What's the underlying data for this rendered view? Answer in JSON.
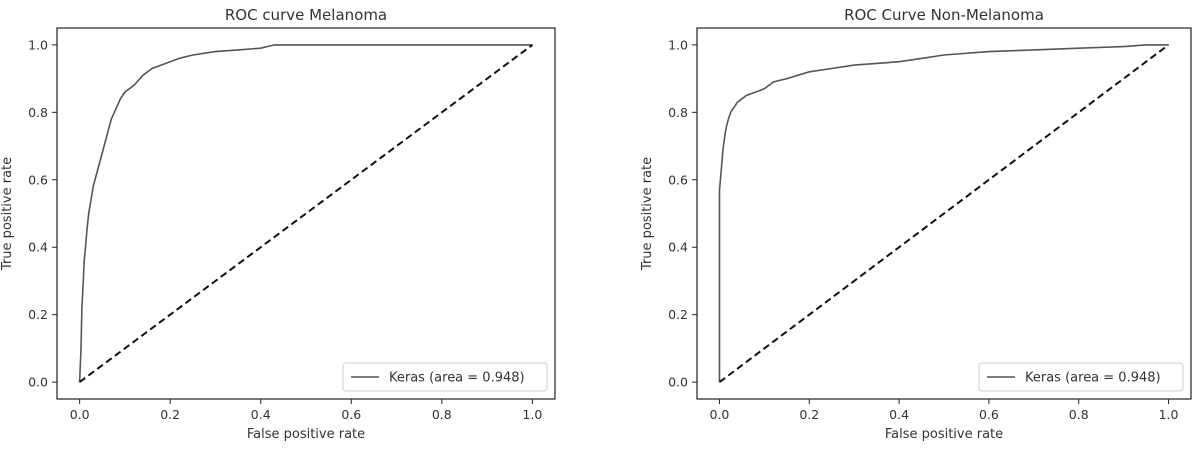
{
  "chart_data": [
    {
      "type": "line",
      "title": "ROC curve Melanoma",
      "xlabel": "False positive rate",
      "ylabel": "True positive rate",
      "xlim": [
        -0.05,
        1.05
      ],
      "ylim": [
        -0.05,
        1.05
      ],
      "xticks": [
        "0.0",
        "0.2",
        "0.4",
        "0.6",
        "0.8",
        "1.0"
      ],
      "yticks": [
        "0.0",
        "0.2",
        "0.4",
        "0.6",
        "0.8",
        "1.0"
      ],
      "xtick_values": [
        0,
        0.2,
        0.4,
        0.6,
        0.8,
        1.0
      ],
      "ytick_values": [
        0,
        0.2,
        0.4,
        0.6,
        0.8,
        1.0
      ],
      "legend_position": "lower right",
      "grid": false,
      "series": [
        {
          "name": "Keras (area = 0.948)",
          "color": "#555555",
          "style": "solid",
          "x": [
            0,
            0.003,
            0.005,
            0.008,
            0.01,
            0.013,
            0.016,
            0.02,
            0.025,
            0.03,
            0.04,
            0.05,
            0.06,
            0.07,
            0.08,
            0.09,
            0.1,
            0.12,
            0.14,
            0.16,
            0.18,
            0.2,
            0.22,
            0.25,
            0.3,
            0.35,
            0.4,
            0.43,
            0.6,
            0.8,
            1.0
          ],
          "y": [
            0,
            0.1,
            0.22,
            0.3,
            0.36,
            0.4,
            0.45,
            0.5,
            0.54,
            0.58,
            0.63,
            0.68,
            0.73,
            0.78,
            0.81,
            0.84,
            0.86,
            0.88,
            0.91,
            0.93,
            0.94,
            0.95,
            0.96,
            0.97,
            0.98,
            0.985,
            0.99,
            1.0,
            1.0,
            1.0,
            1.0
          ]
        },
        {
          "name": "",
          "color": "#111111",
          "style": "dashed",
          "x": [
            0,
            1
          ],
          "y": [
            0,
            1
          ]
        }
      ]
    },
    {
      "type": "line",
      "title": "ROC Curve Non-Melanoma",
      "xlabel": "False positive rate",
      "ylabel": "True positive rate",
      "xlim": [
        -0.05,
        1.05
      ],
      "ylim": [
        -0.05,
        1.05
      ],
      "xticks": [
        "0.0",
        "0.2",
        "0.4",
        "0.6",
        "0.8",
        "1.0"
      ],
      "yticks": [
        "0.0",
        "0.2",
        "0.4",
        "0.6",
        "0.8",
        "1.0"
      ],
      "xtick_values": [
        0,
        0.2,
        0.4,
        0.6,
        0.8,
        1.0
      ],
      "ytick_values": [
        0,
        0.2,
        0.4,
        0.6,
        0.8,
        1.0
      ],
      "legend_position": "lower right",
      "grid": false,
      "series": [
        {
          "name": "Keras (area = 0.948)",
          "color": "#555555",
          "style": "solid",
          "x": [
            0,
            0,
            0.002,
            0.004,
            0.006,
            0.008,
            0.01,
            0.013,
            0.016,
            0.02,
            0.025,
            0.03,
            0.035,
            0.04,
            0.05,
            0.06,
            0.08,
            0.1,
            0.12,
            0.15,
            0.2,
            0.25,
            0.3,
            0.35,
            0.4,
            0.45,
            0.5,
            0.6,
            0.7,
            0.8,
            0.9,
            0.95,
            1.0
          ],
          "y": [
            0,
            0.57,
            0.6,
            0.63,
            0.66,
            0.69,
            0.71,
            0.74,
            0.76,
            0.78,
            0.8,
            0.81,
            0.82,
            0.83,
            0.84,
            0.85,
            0.86,
            0.87,
            0.89,
            0.9,
            0.92,
            0.93,
            0.94,
            0.945,
            0.95,
            0.96,
            0.97,
            0.98,
            0.985,
            0.99,
            0.995,
            1.0,
            1.0
          ]
        },
        {
          "name": "",
          "color": "#111111",
          "style": "dashed",
          "x": [
            0,
            1
          ],
          "y": [
            0,
            1
          ]
        }
      ]
    }
  ]
}
